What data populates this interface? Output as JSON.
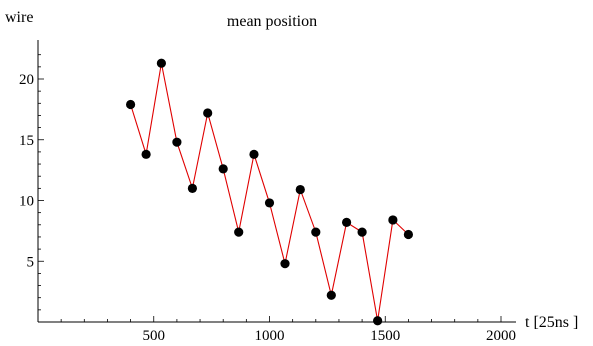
{
  "chart_data": {
    "type": "scatter",
    "title": "mean position",
    "ylabel": "wire",
    "xlabel": "t  [25ns ]",
    "xlim": [
      0,
      2000
    ],
    "ylim": [
      0,
      23
    ],
    "x_ticks": [
      500,
      1000,
      1500,
      2000
    ],
    "y_ticks": [
      5,
      10,
      15,
      20
    ],
    "grid": false,
    "connect_points": true,
    "colors": {
      "line": "#e00000",
      "points": "#000000"
    },
    "series": [
      {
        "x": [
          400,
          467,
          533,
          600,
          667,
          733,
          800,
          867,
          933,
          1000,
          1067,
          1133,
          1200,
          1267,
          1333,
          1400,
          1467,
          1533,
          1600
        ],
        "y": [
          17.9,
          13.8,
          21.3,
          14.8,
          11.0,
          17.2,
          12.6,
          7.4,
          13.8,
          9.8,
          4.8,
          10.9,
          7.4,
          2.2,
          8.2,
          7.4,
          0.1,
          8.4,
          7.2
        ]
      }
    ]
  }
}
